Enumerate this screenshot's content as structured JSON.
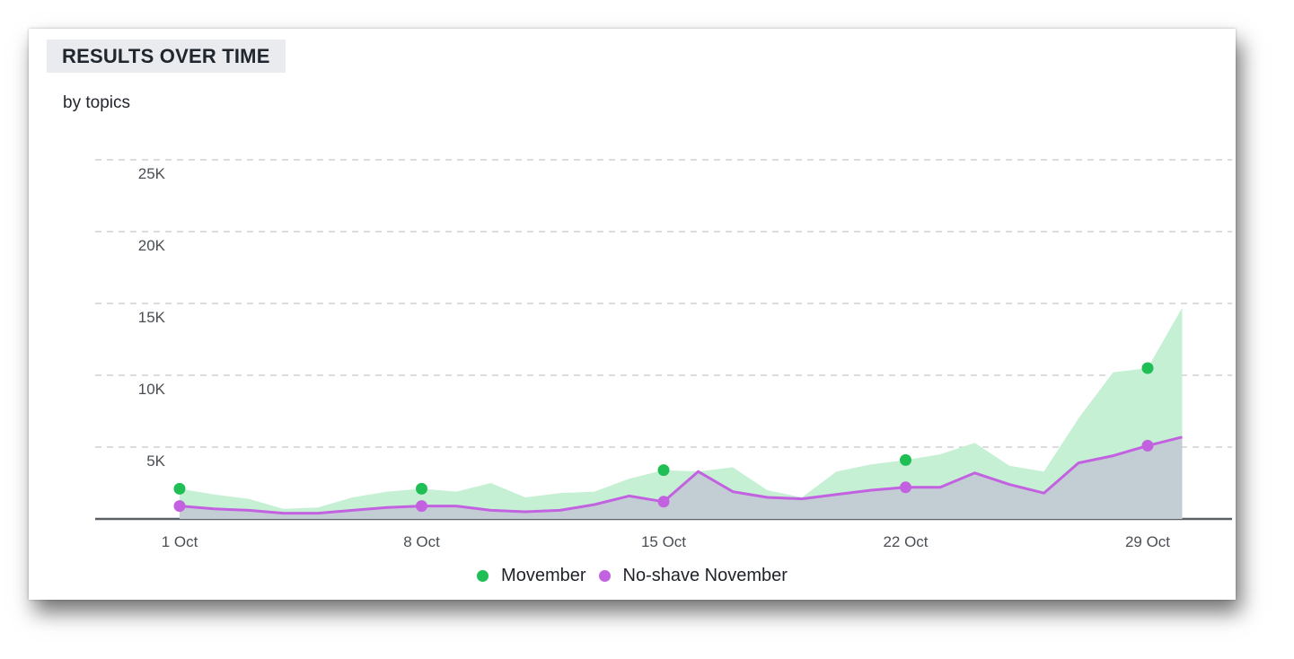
{
  "header": {
    "title": "RESULTS OVER TIME",
    "subtitle": "by topics"
  },
  "colors": {
    "movember_fill": "#c5f0d4",
    "movember_dot": "#1fbf55",
    "noshave_line": "#c362e0",
    "noshave_fill": "#c3ced4",
    "grid": "#c8c8c8",
    "baseline": "#5a6066"
  },
  "chart_data": {
    "type": "area",
    "title": "RESULTS OVER TIME",
    "subtitle": "by topics",
    "x": [
      "1 Oct",
      "2 Oct",
      "3 Oct",
      "4 Oct",
      "5 Oct",
      "6 Oct",
      "7 Oct",
      "8 Oct",
      "9 Oct",
      "10 Oct",
      "11 Oct",
      "12 Oct",
      "13 Oct",
      "14 Oct",
      "15 Oct",
      "16 Oct",
      "17 Oct",
      "18 Oct",
      "19 Oct",
      "20 Oct",
      "21 Oct",
      "22 Oct",
      "23 Oct",
      "24 Oct",
      "25 Oct",
      "26 Oct",
      "27 Oct",
      "28 Oct",
      "29 Oct",
      "30 Oct"
    ],
    "x_ticks": [
      "1 Oct",
      "8 Oct",
      "15 Oct",
      "22 Oct",
      "29 Oct"
    ],
    "y_ticks": [
      "5K",
      "10K",
      "15K",
      "20K",
      "25K"
    ],
    "ylim": [
      0,
      25000
    ],
    "grid": true,
    "legend_position": "bottom-center",
    "series": [
      {
        "name": "Movember",
        "style": "area",
        "values": [
          2100,
          1700,
          1400,
          700,
          800,
          1500,
          1900,
          2100,
          1900,
          2500,
          1500,
          1800,
          1900,
          2800,
          3400,
          3300,
          3600,
          2000,
          1500,
          3300,
          3800,
          4100,
          4500,
          5300,
          3700,
          3300,
          7000,
          10200,
          10500,
          14700
        ]
      },
      {
        "name": "No-shave November",
        "style": "line",
        "values": [
          900,
          700,
          600,
          400,
          400,
          600,
          800,
          900,
          900,
          600,
          500,
          600,
          1000,
          1600,
          1200,
          3300,
          1900,
          1500,
          1400,
          1700,
          2000,
          2200,
          2200,
          3200,
          2400,
          1800,
          3900,
          4400,
          5100,
          5700
        ]
      }
    ]
  }
}
